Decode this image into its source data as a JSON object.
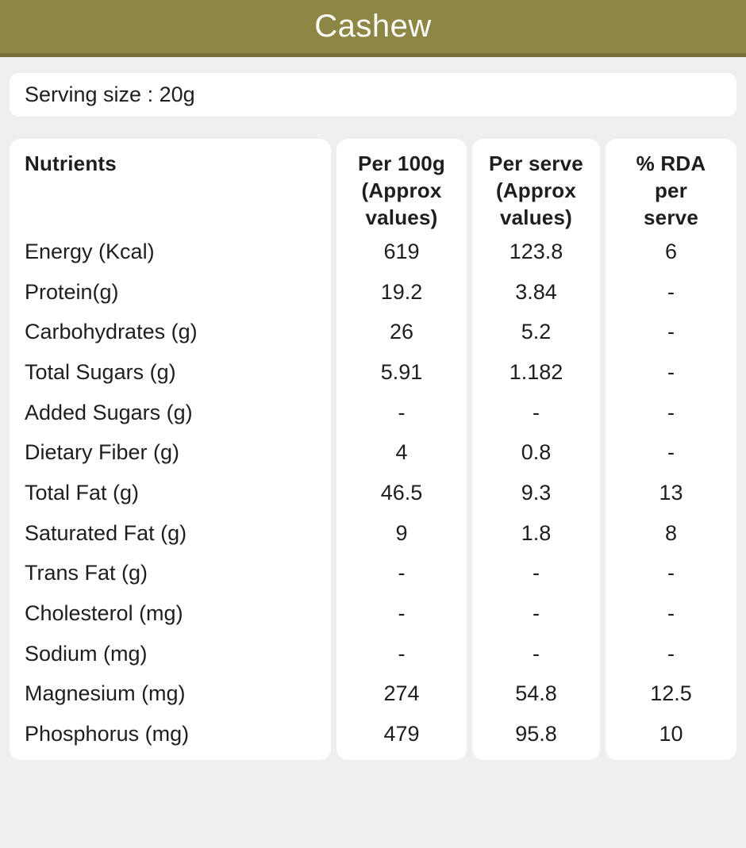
{
  "header": {
    "title": "Cashew"
  },
  "serving": {
    "label": "Serving size : 20g"
  },
  "table": {
    "columns": [
      {
        "label": "Nutrients"
      },
      {
        "label": "Per 100g (Approx values)",
        "lines": [
          "Per 100g",
          "(Approx",
          "values)"
        ]
      },
      {
        "label": "Per serve (Approx values)",
        "lines": [
          "Per serve",
          "(Approx",
          "values)"
        ]
      },
      {
        "label": "% RDA per serve",
        "lines": [
          "% RDA",
          "per",
          "serve"
        ]
      }
    ],
    "rows": [
      {
        "nutrient": "Energy (Kcal)",
        "per100": "619",
        "perserve": "123.8",
        "rda": "6"
      },
      {
        "nutrient": "Protein(g)",
        "per100": "19.2",
        "perserve": "3.84",
        "rda": "-"
      },
      {
        "nutrient": "Carbohydrates (g)",
        "per100": "26",
        "perserve": "5.2",
        "rda": "-"
      },
      {
        "nutrient": "Total Sugars (g)",
        "per100": "5.91",
        "perserve": "1.182",
        "rda": "-"
      },
      {
        "nutrient": "Added Sugars (g)",
        "per100": "-",
        "perserve": "-",
        "rda": "-"
      },
      {
        "nutrient": "Dietary Fiber (g)",
        "per100": "4",
        "perserve": "0.8",
        "rda": "-"
      },
      {
        "nutrient": "Total Fat (g)",
        "per100": "46.5",
        "perserve": "9.3",
        "rda": "13"
      },
      {
        "nutrient": "Saturated Fat (g)",
        "per100": "9",
        "perserve": "1.8",
        "rda": "8"
      },
      {
        "nutrient": "Trans Fat (g)",
        "per100": "-",
        "perserve": "-",
        "rda": "-"
      },
      {
        "nutrient": "Cholesterol (mg)",
        "per100": "-",
        "perserve": "-",
        "rda": "-"
      },
      {
        "nutrient": "Sodium (mg)",
        "per100": "-",
        "perserve": "-",
        "rda": "-"
      },
      {
        "nutrient": "Magnesium (mg)",
        "per100": "274",
        "perserve": "54.8",
        "rda": "12.5"
      },
      {
        "nutrient": "Phosphorus (mg)",
        "per100": "479",
        "perserve": "95.8",
        "rda": "10"
      }
    ]
  },
  "colors": {
    "header_bg": "#8d8644",
    "header_border": "#76713a",
    "header_text": "#fbfbf8",
    "page_bg": "#efefef",
    "card_bg": "#ffffff",
    "text": "#1e1e1e"
  }
}
